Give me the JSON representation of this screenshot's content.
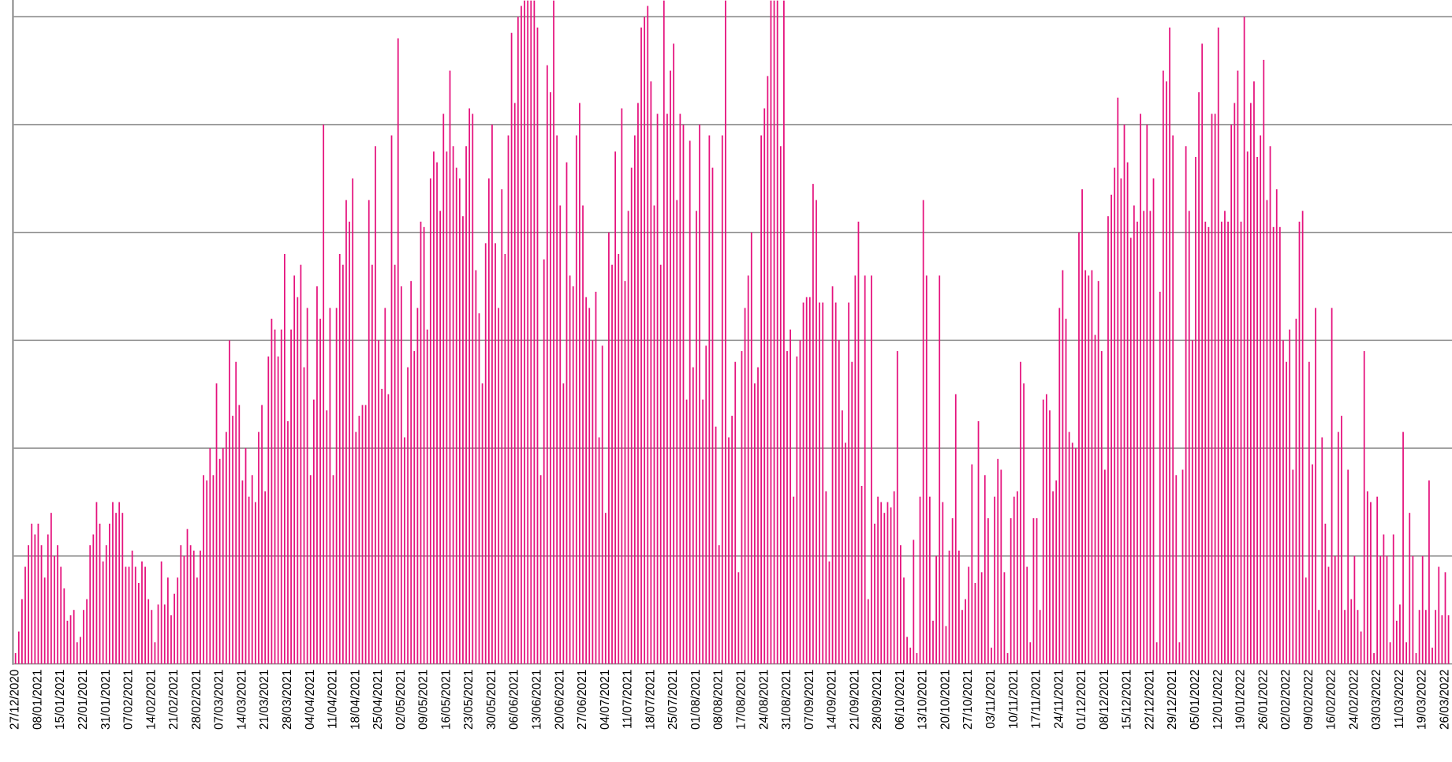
{
  "chart_data": {
    "type": "bar",
    "color": "#e5127d",
    "grid": true,
    "ylim": [
      0,
      6.155
    ],
    "yticks": [
      0,
      1,
      2,
      3,
      4,
      5,
      6
    ],
    "categories": [
      "27/12/2020",
      null,
      null,
      null,
      null,
      null,
      null,
      "08/01/2021",
      null,
      null,
      null,
      null,
      null,
      null,
      "15/01/2021",
      null,
      null,
      null,
      null,
      null,
      null,
      "22/01/2021",
      null,
      null,
      null,
      null,
      null,
      null,
      "31/01/2021",
      null,
      null,
      null,
      null,
      null,
      null,
      "07/02/2021",
      null,
      null,
      null,
      null,
      null,
      null,
      "14/02/2021",
      null,
      null,
      null,
      null,
      null,
      null,
      "21/02/2021",
      null,
      null,
      null,
      null,
      null,
      null,
      "28/02/2021",
      null,
      null,
      null,
      null,
      null,
      null,
      "07/03/2021",
      null,
      null,
      null,
      null,
      null,
      null,
      "14/03/2021",
      null,
      null,
      null,
      null,
      null,
      null,
      "21/03/2021",
      null,
      null,
      null,
      null,
      null,
      null,
      "28/03/2021",
      null,
      null,
      null,
      null,
      null,
      null,
      "04/04/2021",
      null,
      null,
      null,
      null,
      null,
      null,
      "11/04/2021",
      null,
      null,
      null,
      null,
      null,
      null,
      "18/04/2021",
      null,
      null,
      null,
      null,
      null,
      null,
      "25/04/2021",
      null,
      null,
      null,
      null,
      null,
      null,
      "02/05/2021",
      null,
      null,
      null,
      null,
      null,
      null,
      "09/05/2021",
      null,
      null,
      null,
      null,
      null,
      null,
      "16/05/2021",
      null,
      null,
      null,
      null,
      null,
      null,
      "23/05/2021",
      null,
      null,
      null,
      null,
      null,
      null,
      "30/05/2021",
      null,
      null,
      null,
      null,
      null,
      null,
      "06/06/2021",
      null,
      null,
      null,
      null,
      null,
      null,
      "13/06/2021",
      null,
      null,
      null,
      null,
      null,
      null,
      "20/06/2021",
      null,
      null,
      null,
      null,
      null,
      null,
      "27/06/2021",
      null,
      null,
      null,
      null,
      null,
      null,
      "04/07/2021",
      null,
      null,
      null,
      null,
      null,
      null,
      "11/07/2021",
      null,
      null,
      null,
      null,
      null,
      null,
      "18/07/2021",
      null,
      null,
      null,
      null,
      null,
      null,
      "25/07/2021",
      null,
      null,
      null,
      null,
      null,
      null,
      "01/08/2021",
      null,
      null,
      null,
      null,
      null,
      null,
      "08/08/2021",
      null,
      null,
      null,
      null,
      null,
      null,
      "17/08/2021",
      null,
      null,
      null,
      null,
      null,
      null,
      "24/08/2021",
      null,
      null,
      null,
      null,
      null,
      null,
      "31/08/2021",
      null,
      null,
      null,
      null,
      null,
      null,
      "07/09/2021",
      null,
      null,
      null,
      null,
      null,
      null,
      "14/09/2021",
      null,
      null,
      null,
      null,
      null,
      null,
      "21/09/2021",
      null,
      null,
      null,
      null,
      null,
      null,
      "28/09/2021",
      null,
      null,
      null,
      null,
      null,
      null,
      "06/10/2021",
      null,
      null,
      null,
      null,
      null,
      null,
      "13/10/2021",
      null,
      null,
      null,
      null,
      null,
      null,
      "20/10/2021",
      null,
      null,
      null,
      null,
      null,
      null,
      "27/10/2021",
      null,
      null,
      null,
      null,
      null,
      null,
      "03/11/2021",
      null,
      null,
      null,
      null,
      null,
      null,
      "10/11/2021",
      null,
      null,
      null,
      null,
      null,
      null,
      "17/11/2021",
      null,
      null,
      null,
      null,
      null,
      null,
      "24/11/2021",
      null,
      null,
      null,
      null,
      null,
      null,
      "01/12/2021",
      null,
      null,
      null,
      null,
      null,
      null,
      "08/12/2021",
      null,
      null,
      null,
      null,
      null,
      null,
      "15/12/2021",
      null,
      null,
      null,
      null,
      null,
      null,
      "22/12/2021",
      null,
      null,
      null,
      null,
      null,
      null,
      "29/12/2021",
      null,
      null,
      null,
      null,
      null,
      null,
      "05/01/2022",
      null,
      null,
      null,
      null,
      null,
      null,
      "12/01/2022",
      null,
      null,
      null,
      null,
      null,
      null,
      "19/01/2022",
      null,
      null,
      null,
      null,
      null,
      null,
      "26/01/2022",
      null,
      null,
      null,
      null,
      null,
      null,
      "02/02/2022",
      null,
      null,
      null,
      null,
      null,
      null,
      "09/02/2022",
      null,
      null,
      null,
      null,
      null,
      null,
      "16/02/2022",
      null,
      null,
      null,
      null,
      null,
      null,
      "24/02/2022",
      null,
      null,
      null,
      null,
      null,
      null,
      "03/03/2022",
      null,
      null,
      null,
      null,
      null,
      null,
      "11/03/2022",
      null,
      null,
      null,
      null,
      null,
      null,
      "19/03/2022",
      null,
      null,
      null,
      null,
      null,
      null,
      "26/03/2022",
      null
    ],
    "values": [
      0.1,
      0.3,
      0.6,
      0.9,
      1.1,
      1.3,
      1.2,
      1.3,
      1.1,
      0.8,
      1.2,
      1.4,
      1.0,
      1.1,
      0.9,
      0.7,
      0.4,
      0.45,
      0.5,
      0.2,
      0.25,
      0.5,
      0.6,
      1.1,
      1.2,
      1.5,
      1.3,
      0.95,
      1.1,
      1.3,
      1.5,
      1.4,
      1.5,
      1.4,
      0.9,
      0.9,
      1.05,
      0.9,
      0.75,
      0.95,
      0.9,
      0.6,
      0.5,
      0.2,
      0.55,
      0.95,
      0.55,
      0.8,
      0.45,
      0.65,
      0.8,
      1.1,
      1.0,
      1.25,
      1.1,
      1.05,
      0.8,
      1.05,
      1.75,
      1.7,
      2.0,
      1.75,
      2.6,
      1.9,
      2.0,
      2.15,
      3.0,
      2.3,
      2.8,
      2.4,
      1.7,
      2.0,
      1.55,
      1.75,
      1.5,
      2.15,
      2.4,
      1.6,
      2.85,
      3.2,
      3.1,
      2.85,
      3.1,
      3.8,
      2.25,
      3.1,
      3.6,
      3.4,
      3.7,
      2.75,
      3.3,
      1.75,
      2.45,
      3.5,
      3.2,
      5.0,
      2.35,
      3.3,
      1.75,
      3.3,
      3.8,
      3.7,
      4.3,
      4.1,
      4.5,
      2.15,
      2.3,
      2.4,
      2.4,
      4.3,
      3.7,
      4.8,
      3.0,
      2.55,
      3.3,
      2.5,
      4.9,
      3.7,
      5.8,
      3.5,
      2.1,
      2.75,
      3.55,
      2.9,
      3.3,
      4.1,
      4.05,
      3.1,
      4.5,
      4.75,
      4.65,
      4.2,
      5.1,
      4.75,
      5.5,
      4.8,
      4.6,
      4.5,
      4.15,
      4.8,
      5.15,
      5.1,
      3.65,
      3.25,
      2.6,
      3.9,
      4.5,
      5.0,
      3.9,
      3.3,
      4.4,
      3.8,
      4.9,
      5.85,
      5.2,
      6.0,
      6.1,
      6.15,
      6.15,
      6.15,
      6.15,
      5.9,
      1.75,
      3.75,
      5.55,
      5.3,
      6.15,
      4.9,
      4.25,
      2.6,
      4.65,
      3.6,
      3.5,
      4.9,
      5.2,
      4.25,
      3.4,
      3.3,
      3.0,
      3.45,
      2.1,
      2.95,
      1.4,
      4.0,
      3.7,
      4.75,
      3.8,
      5.15,
      3.55,
      4.2,
      4.6,
      4.9,
      5.2,
      5.9,
      6.0,
      6.1,
      5.4,
      4.25,
      5.1,
      3.7,
      6.15,
      5.1,
      5.5,
      5.75,
      4.3,
      5.1,
      5.0,
      2.45,
      4.85,
      2.75,
      4.2,
      5.0,
      2.45,
      2.95,
      4.9,
      4.6,
      2.2,
      1.1,
      4.9,
      6.15,
      2.1,
      2.3,
      2.8,
      0.85,
      2.9,
      3.3,
      3.6,
      4.0,
      2.6,
      2.75,
      4.9,
      5.15,
      5.45,
      6.15,
      6.15,
      6.15,
      4.8,
      6.15,
      2.9,
      3.1,
      1.55,
      2.85,
      3.0,
      3.35,
      3.4,
      3.4,
      4.45,
      4.3,
      3.35,
      3.35,
      1.6,
      0.95,
      3.5,
      3.35,
      3.0,
      2.35,
      2.05,
      3.35,
      2.8,
      3.6,
      4.1,
      1.65,
      3.6,
      0.6,
      3.6,
      1.3,
      1.55,
      1.5,
      1.4,
      1.5,
      1.45,
      1.6,
      2.9,
      1.1,
      0.8,
      0.25,
      0.15,
      1.15,
      0.1,
      1.55,
      4.3,
      3.6,
      1.55,
      0.4,
      1.0,
      3.6,
      1.5,
      0.35,
      1.05,
      1.35,
      2.5,
      1.05,
      0.5,
      0.6,
      0.9,
      1.85,
      0.75,
      2.25,
      0.85,
      1.75,
      1.35,
      0.15,
      1.55,
      1.9,
      1.8,
      0.85,
      0.1,
      1.35,
      1.55,
      1.6,
      2.8,
      2.6,
      0.9,
      0.2,
      1.35,
      1.35,
      0.5,
      2.45,
      2.5,
      2.35,
      1.6,
      1.7,
      3.3,
      3.65,
      3.2,
      2.15,
      2.05,
      2.0,
      4.0,
      4.4,
      3.65,
      3.6,
      3.65,
      3.05,
      3.55,
      2.9,
      1.8,
      4.15,
      4.35,
      4.6,
      5.25,
      4.5,
      5.0,
      4.65,
      3.95,
      4.25,
      4.1,
      5.1,
      4.2,
      5.0,
      4.2,
      4.5,
      0.2,
      3.45,
      5.5,
      5.4,
      5.9,
      4.9,
      1.75,
      0.2,
      1.8,
      4.8,
      4.2,
      3.0,
      4.7,
      5.3,
      5.75,
      4.1,
      4.05,
      5.1,
      5.1,
      5.9,
      4.1,
      4.2,
      4.1,
      5.0,
      5.2,
      5.5,
      4.1,
      6.0,
      4.75,
      5.2,
      5.4,
      4.7,
      4.9,
      5.6,
      4.3,
      4.8,
      4.05,
      4.4,
      4.05,
      3.0,
      2.8,
      3.1,
      1.8,
      3.2,
      4.1,
      4.2,
      0.8,
      2.8,
      1.85,
      3.3,
      0.5,
      2.1,
      1.3,
      0.9,
      3.3,
      1.0,
      2.15,
      2.3,
      0.5,
      1.8,
      0.6,
      1.0,
      0.5,
      0.3,
      2.9,
      1.6,
      1.5,
      0.1,
      1.55,
      1.0,
      1.2,
      1.0,
      0.2,
      1.2,
      0.4,
      0.55,
      2.15,
      0.2,
      1.4,
      1.0,
      0.1,
      0.5,
      1.0,
      0.5,
      1.7,
      0.15,
      0.5,
      0.9,
      0.45,
      0.85,
      0.45
    ]
  }
}
